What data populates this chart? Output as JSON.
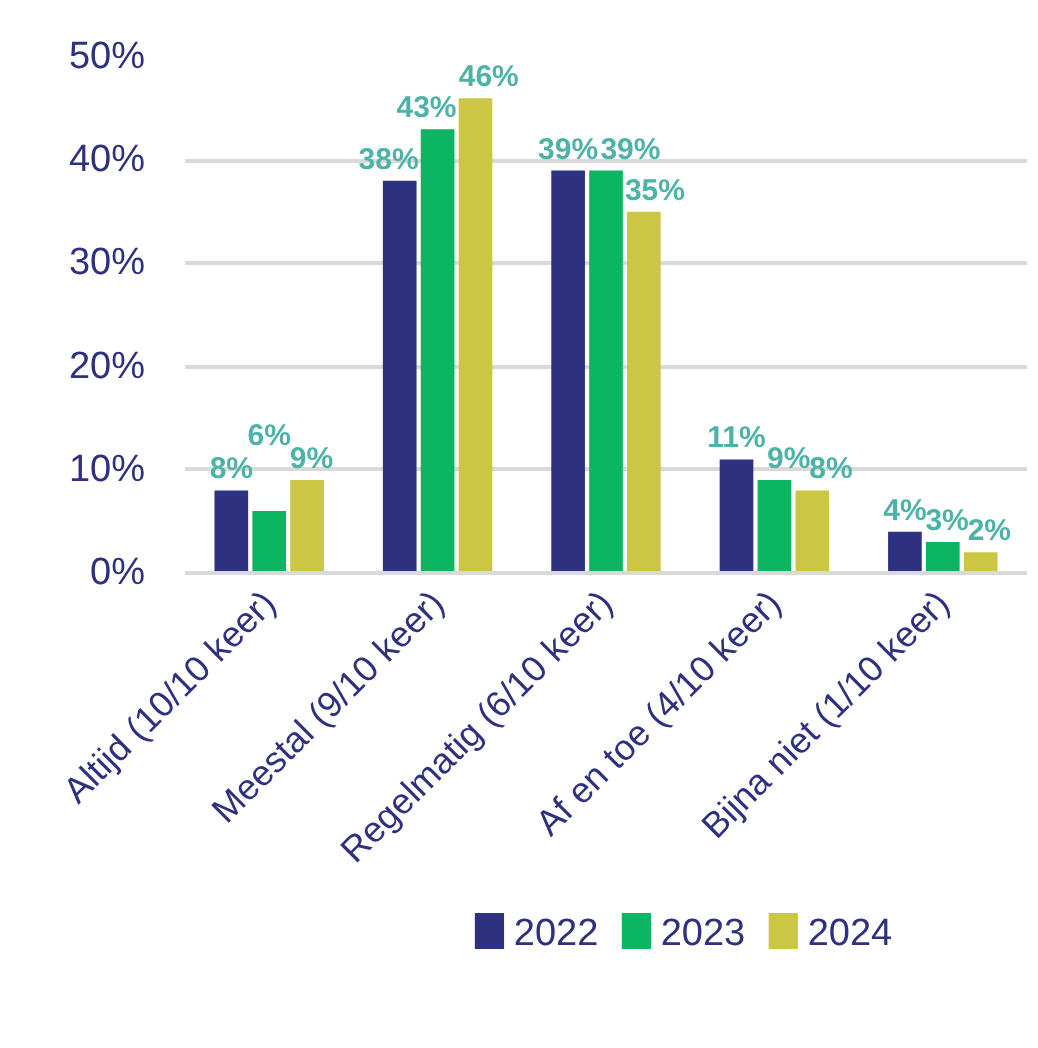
{
  "chart_data": {
    "type": "bar",
    "categories": [
      "Altijd (10/10 keer)",
      "Meestal (9/10 keer)",
      "Regelmatig (6/10 keer)",
      "Af en toe (4/10 keer)",
      "Bijna niet (1/10 keer)"
    ],
    "series": [
      {
        "name": "2022",
        "color": "#2e3080",
        "values": [
          8,
          38,
          39,
          11,
          4
        ],
        "value_labels": [
          "8%",
          "38%",
          "39%",
          "11%",
          "4%"
        ]
      },
      {
        "name": "2023",
        "color": "#0bb562",
        "values": [
          6,
          43,
          39,
          9,
          3
        ],
        "value_labels": [
          "6%",
          "43%",
          "39%",
          "9%",
          "3%"
        ]
      },
      {
        "name": "2024",
        "color": "#cbc643",
        "values": [
          9,
          46,
          35,
          8,
          2
        ],
        "value_labels": [
          "9%",
          "46%",
          "35%",
          "8%",
          "2%"
        ]
      }
    ],
    "ylim": [
      0,
      50
    ],
    "yticks": [
      {
        "value": 0,
        "label": "0%"
      },
      {
        "value": 10,
        "label": "10%"
      },
      {
        "value": 20,
        "label": "20%"
      },
      {
        "value": 30,
        "label": "30%"
      },
      {
        "value": 40,
        "label": "40%"
      },
      {
        "value": 50,
        "label": "50%"
      }
    ],
    "grid": "y",
    "legend": "bottom"
  }
}
